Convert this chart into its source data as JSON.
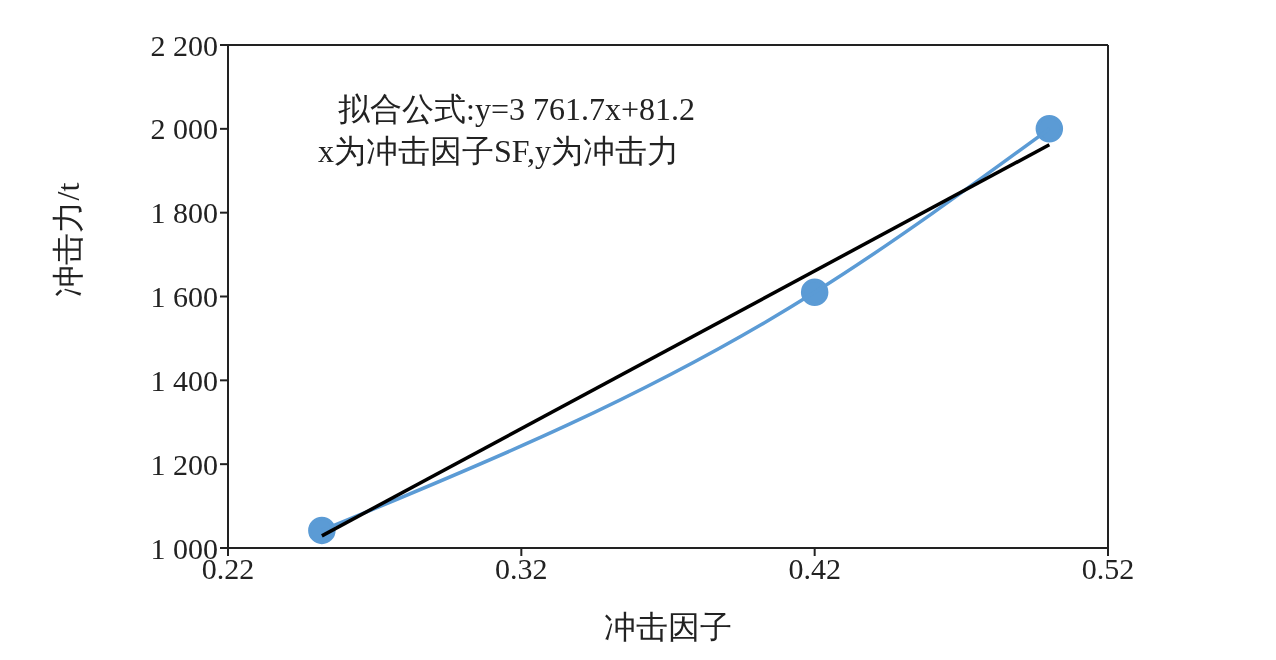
{
  "chart_data": {
    "type": "line",
    "xlabel": "冲击因子",
    "ylabel": "冲击力/t",
    "annotations": [
      "拟合公式:y=3 761.7x+81.2",
      "x为冲击因子SF,y为冲击力"
    ],
    "series": [
      {
        "color": "#5b9bd5",
        "x": [
          0.252,
          0.42,
          0.5
        ],
        "values": [
          1042,
          1610,
          2000
        ],
        "marker": "circle"
      },
      {
        "type": "line",
        "color": "#000000",
        "x": [
          0.252,
          0.5
        ],
        "values": [
          1029,
          1962
        ],
        "marker": "none"
      }
    ],
    "xlim": [
      0.22,
      0.52
    ],
    "xticks": [
      0.22,
      0.32,
      0.42,
      0.52
    ],
    "ylim": [
      1000,
      2200
    ],
    "yticks": [
      {
        "value": 1000,
        "label": "1 000"
      },
      {
        "value": 1200,
        "label": "1 200"
      },
      {
        "value": 1400,
        "label": "1 400"
      },
      {
        "value": 1600,
        "label": "1 600"
      },
      {
        "value": 1800,
        "label": "1 800"
      },
      {
        "value": 2000,
        "label": "2 000"
      },
      {
        "value": 2200,
        "label": "2 200"
      }
    ],
    "grid": false,
    "legend": false
  }
}
